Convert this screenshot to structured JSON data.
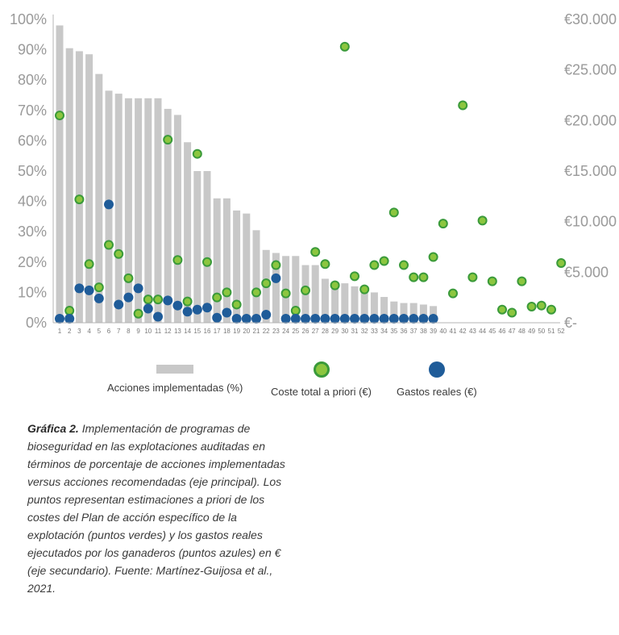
{
  "chart_data": {
    "type": "bar",
    "categories": [
      "1",
      "2",
      "3",
      "4",
      "5",
      "6",
      "7",
      "8",
      "9",
      "10",
      "11",
      "12",
      "13",
      "14",
      "15",
      "16",
      "17",
      "18",
      "19",
      "20",
      "21",
      "22",
      "23",
      "24",
      "25",
      "26",
      "27",
      "28",
      "29",
      "30",
      "31",
      "32",
      "33",
      "34",
      "35",
      "36",
      "37",
      "38",
      "39",
      "40",
      "41",
      "42",
      "43",
      "44",
      "45",
      "46",
      "47",
      "48",
      "49",
      "50",
      "51",
      "52"
    ],
    "y_primary": {
      "ylim": [
        0,
        100
      ],
      "ticks": [
        "0%",
        "10%",
        "20%",
        "30%",
        "40%",
        "50%",
        "60%",
        "70%",
        "80%",
        "90%",
        "100%"
      ]
    },
    "y_secondary": {
      "ylim": [
        0,
        30000
      ],
      "ticks": [
        "€-",
        "€5.000",
        "€10.000",
        "€15.000",
        "€20.000",
        "€25.000",
        "€30.000"
      ]
    },
    "grid": false,
    "legend_position": "bottom",
    "series": [
      {
        "name": "Acciones implementadas (%)",
        "axis": "primary",
        "color": "#c8c8c8",
        "values": [
          98,
          90.5,
          89.5,
          88.5,
          82,
          76.5,
          75.5,
          74,
          74,
          74,
          74,
          70.5,
          68.5,
          59.5,
          50,
          50,
          41,
          41,
          37,
          36,
          30.5,
          24,
          23,
          22,
          22,
          19,
          19,
          14.5,
          13.5,
          13,
          12,
          11.5,
          10,
          8.5,
          7,
          6.5,
          6.5,
          6,
          5.5,
          null,
          null,
          null,
          null,
          null,
          null,
          null,
          null,
          null,
          null,
          null,
          null,
          null
        ]
      },
      {
        "name": "Coste total a priori (€)",
        "axis": "secondary",
        "color": "#8cc63f",
        "values": [
          20500,
          1200,
          12200,
          5800,
          3500,
          7700,
          6800,
          4400,
          900,
          2300,
          2300,
          18100,
          6200,
          2100,
          16700,
          6000,
          2500,
          3000,
          1800,
          null,
          3000,
          3900,
          5700,
          2900,
          1200,
          3200,
          7000,
          5800,
          3700,
          27300,
          4600,
          3300,
          5700,
          6100,
          10900,
          5700,
          4500,
          4500,
          6500,
          9800,
          2900,
          21500,
          4500,
          10100,
          4100,
          1300,
          1000,
          4100,
          1600,
          1700,
          1300,
          5900
        ]
      },
      {
        "name": "Gastos reales (€)",
        "axis": "secondary",
        "color": "#1f5c99",
        "values": [
          400,
          400,
          3400,
          3200,
          2400,
          11700,
          1800,
          2500,
          3400,
          1400,
          600,
          2200,
          1700,
          1100,
          1300,
          1500,
          500,
          1000,
          400,
          400,
          400,
          800,
          4400,
          400,
          400,
          400,
          400,
          400,
          400,
          400,
          400,
          400,
          400,
          400,
          400,
          400,
          400,
          400,
          400,
          null,
          null,
          null,
          null,
          null,
          null,
          null,
          null,
          null,
          null,
          null,
          null,
          null
        ]
      }
    ]
  },
  "legend": {
    "bars": "Acciones implementadas (%)",
    "green": "Coste total a priori (€)",
    "blue": "Gastos reales (€)"
  },
  "caption": {
    "lead": "Gráfica 2.",
    "text": " Implementación de programas de bioseguridad en las explotaciones auditadas en términos de porcentaje de acciones implementadas versus acciones recomendadas (eje principal). Los puntos representan estimaciones a priori de los costes del Plan de acción específico de la explotación (puntos verdes) y los gastos reales ejecutados por los ganaderos (puntos azules) en € (eje secundario). Fuente: Martínez-Guijosa et al., 2021."
  }
}
